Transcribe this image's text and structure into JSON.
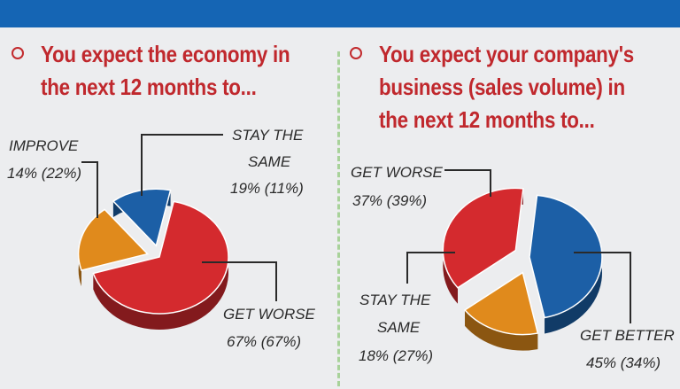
{
  "chart_data": [
    {
      "type": "pie",
      "title_lines": [
        "You expect the economy in",
        "the next 12 months to..."
      ],
      "slices": [
        {
          "label": "GET WORSE",
          "value": 67,
          "prior": 67,
          "display": "67% (67%)",
          "color": "#d42a2e"
        },
        {
          "label": "STAY THE SAME",
          "value": 19,
          "prior": 11,
          "display": "19% (11%)",
          "color": "#e08a1c"
        },
        {
          "label": "IMPROVE",
          "value": 14,
          "prior": 22,
          "display": "14% (22%)",
          "color": "#1c5fa6"
        }
      ],
      "unit": "%"
    },
    {
      "type": "pie",
      "title_lines": [
        "You expect your company's",
        "business (sales volume) in",
        "the next 12 months to..."
      ],
      "slices": [
        {
          "label": "GET BETTER",
          "value": 45,
          "prior": 34,
          "display": "45% (34%)",
          "color": "#1c5fa6"
        },
        {
          "label": "STAY THE SAME",
          "value": 18,
          "prior": 27,
          "display": "18% (27%)",
          "color": "#e08a1c"
        },
        {
          "label": "GET WORSE",
          "value": 37,
          "prior": 39,
          "display": "37% (39%)",
          "color": "#d42a2e"
        }
      ],
      "unit": "%"
    }
  ]
}
